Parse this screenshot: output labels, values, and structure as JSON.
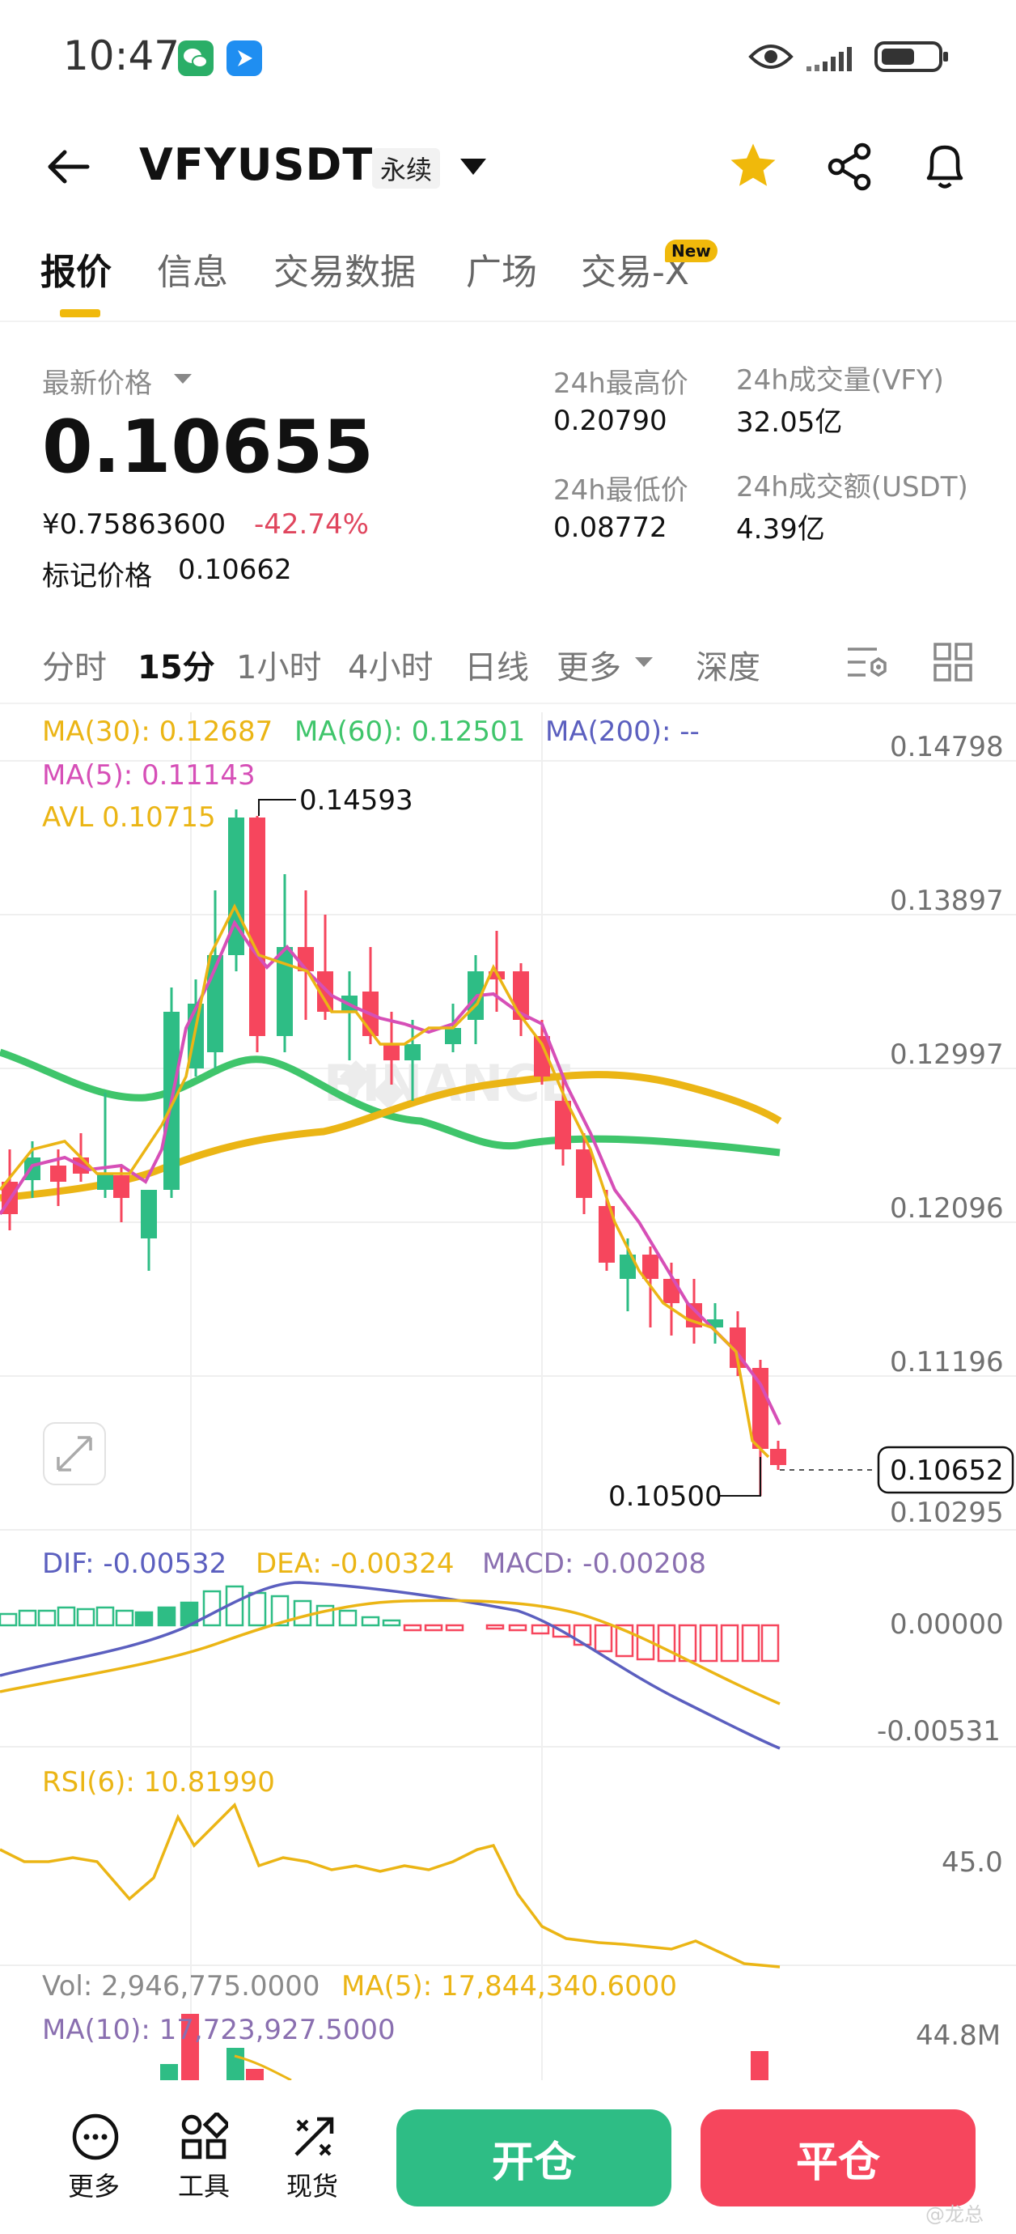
{
  "status_bar": {
    "time": "10:47"
  },
  "header": {
    "pair": "VFYUSDT",
    "perp_tag": "永续"
  },
  "tabs": [
    {
      "label": "报价"
    },
    {
      "label": "信息"
    },
    {
      "label": "交易数据"
    },
    {
      "label": "广场"
    },
    {
      "label": "交易-X"
    }
  ],
  "tab_badge": "New",
  "price": {
    "last_label": "最新价格",
    "last": "0.10655",
    "cny": "¥0.75863600",
    "change": "-42.74%",
    "mark_label": "标记价格",
    "mark": "0.10662"
  },
  "stats": {
    "high_label": "24h最高价",
    "high": "0.20790",
    "low_label": "24h最低价",
    "low": "0.08772",
    "vol_label": "24h成交量(VFY)",
    "vol": "32.05亿",
    "amt_label": "24h成交额(USDT)",
    "amt": "4.39亿"
  },
  "intervals": [
    "分时",
    "15分",
    "1小时",
    "4小时",
    "日线",
    "更多",
    "深度"
  ],
  "chart": {
    "ma30": "MA(30): 0.12687",
    "ma60": "MA(60): 0.12501",
    "ma200": "MA(200): --",
    "ma5": "MA(5): 0.11143",
    "avl": "AVL 0.10715",
    "high_marker": "0.14593",
    "low_marker": "0.10500",
    "current_tag": "0.10652",
    "watermark": "BINANCE",
    "y_ticks": [
      "0.14798",
      "0.13897",
      "0.12997",
      "0.12096",
      "0.11196",
      "0.10295"
    ],
    "colors": {
      "up": "#2ebd85",
      "down": "#f6465d",
      "ma5": "#d64fb7",
      "ma30": "#f0b90b",
      "ma60": "#3fc56b",
      "ma200": "#5b5fbf"
    }
  },
  "macd": {
    "dif": "DIF: -0.00532",
    "dea": "DEA: -0.00324",
    "macd": "MACD: -0.00208",
    "y_ticks": [
      "0.00000",
      "-0.00531"
    ]
  },
  "rsi": {
    "label": "RSI(6): 10.81990",
    "y_tick": "45.0"
  },
  "volume": {
    "vol": "Vol: 2,946,775.0000",
    "ma5": "MA(5): 17,844,340.6000",
    "ma10": "MA(10): 17,723,927.5000",
    "y_tick": "44.8M"
  },
  "bottom_bar": {
    "more": "更多",
    "tools": "工具",
    "spot": "现货",
    "open": "开仓",
    "close": "平仓",
    "watermark": "@龙总"
  }
}
